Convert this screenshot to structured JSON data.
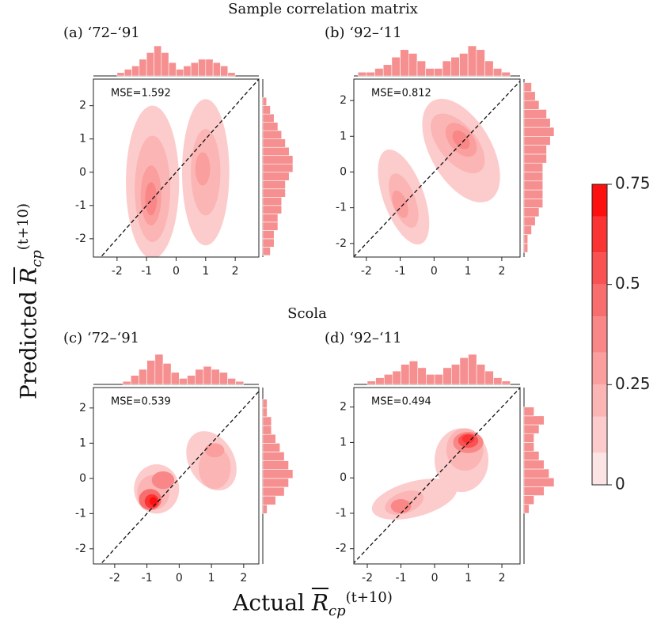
{
  "figure": {
    "section_titles": [
      "Sample correlation matrix",
      "Scola"
    ],
    "xlabel": {
      "text": "Actual",
      "symbol": "R",
      "subscript": "cp",
      "superscript": "(t+10)"
    },
    "ylabel": {
      "text": "Predicted",
      "symbol": "R",
      "subscript": "cp",
      "superscript": "(t+10)"
    }
  },
  "chart_data": [
    {
      "type": "kde",
      "title": "(a) ‘72–‘91",
      "annotation": "MSE=1.592",
      "xlim": [
        -2.8,
        2.8
      ],
      "ylim": [
        -2.55,
        2.8
      ],
      "xticks": [
        -2,
        -1,
        0,
        1,
        2
      ],
      "yticks": [
        -2,
        -1,
        0,
        1,
        2
      ],
      "contours": [
        {
          "x": -0.8,
          "y": -0.3,
          "rx": 0.9,
          "ry": 2.3,
          "angle": 0,
          "level": 0.08
        },
        {
          "x": 1.0,
          "y": 0.0,
          "rx": 0.8,
          "ry": 2.2,
          "angle": 0,
          "level": 0.08
        },
        {
          "x": -0.8,
          "y": -0.5,
          "rx": 0.6,
          "ry": 1.6,
          "angle": 0,
          "level": 0.17
        },
        {
          "x": 1.0,
          "y": 0.0,
          "rx": 0.5,
          "ry": 1.3,
          "angle": 0,
          "level": 0.17
        },
        {
          "x": -0.85,
          "y": -0.7,
          "rx": 0.35,
          "ry": 0.9,
          "angle": 0,
          "level": 0.25
        },
        {
          "x": 0.9,
          "y": 0.1,
          "rx": 0.25,
          "ry": 0.5,
          "angle": 0,
          "level": 0.25
        },
        {
          "x": -0.85,
          "y": -0.8,
          "rx": 0.2,
          "ry": 0.5,
          "angle": 0,
          "level": 0.33
        }
      ],
      "hist_x": {
        "bins": [
          -2.5,
          -2.25,
          -2,
          -1.75,
          -1.5,
          -1.25,
          -1,
          -0.75,
          -0.5,
          -0.25,
          0,
          0.25,
          0.5,
          0.75,
          1,
          1.25,
          1.5,
          1.75,
          2,
          2.25,
          2.5
        ],
        "counts": [
          0,
          0,
          1,
          2,
          3,
          5,
          7,
          9,
          7,
          4,
          2,
          3,
          4,
          5,
          5,
          4,
          3,
          1,
          0,
          0
        ]
      },
      "hist_y": {
        "bins": [
          -2.5,
          -2.25,
          -2,
          -1.75,
          -1.5,
          -1.25,
          -1,
          -0.75,
          -0.5,
          -0.25,
          0,
          0.25,
          0.5,
          0.75,
          1,
          1.25,
          1.5,
          1.75,
          2,
          2.25,
          2.5
        ],
        "counts": [
          2,
          3,
          3,
          4,
          4,
          5,
          5,
          6,
          6,
          7,
          8,
          8,
          7,
          6,
          5,
          4,
          3,
          2,
          1,
          0
        ]
      }
    },
    {
      "type": "kde",
      "title": "(b) ‘92–‘11",
      "annotation": "MSE=0.812",
      "xlim": [
        -2.37,
        2.54
      ],
      "ylim": [
        -2.38,
        2.6
      ],
      "xticks": [
        -2,
        -1,
        0,
        1,
        2
      ],
      "yticks": [
        -2,
        -1,
        0,
        1,
        2
      ],
      "contours": [
        {
          "x": -0.9,
          "y": -0.7,
          "rx": 0.6,
          "ry": 1.4,
          "angle": 20,
          "level": 0.08
        },
        {
          "x": 0.8,
          "y": 0.6,
          "rx": 0.9,
          "ry": 1.6,
          "angle": 30,
          "level": 0.08
        },
        {
          "x": -0.9,
          "y": -0.8,
          "rx": 0.35,
          "ry": 0.8,
          "angle": 20,
          "level": 0.17
        },
        {
          "x": 0.7,
          "y": 0.8,
          "rx": 0.55,
          "ry": 1.0,
          "angle": 40,
          "level": 0.17
        },
        {
          "x": 0.8,
          "y": 0.9,
          "rx": 0.35,
          "ry": 0.55,
          "angle": 40,
          "level": 0.25
        },
        {
          "x": -1.0,
          "y": -0.9,
          "rx": 0.2,
          "ry": 0.4,
          "angle": 20,
          "level": 0.25
        },
        {
          "x": 0.8,
          "y": 0.9,
          "rx": 0.2,
          "ry": 0.3,
          "angle": 40,
          "level": 0.33
        }
      ],
      "hist_x": {
        "bins": [
          -2.5,
          -2.25,
          -2,
          -1.75,
          -1.5,
          -1.25,
          -1,
          -0.75,
          -0.5,
          -0.25,
          0,
          0.25,
          0.5,
          0.75,
          1,
          1.25,
          1.5,
          1.75,
          2,
          2.25,
          2.5
        ],
        "counts": [
          0,
          1,
          1,
          2,
          3,
          5,
          7,
          6,
          4,
          2,
          2,
          4,
          5,
          6,
          8,
          7,
          4,
          2,
          1,
          0
        ]
      },
      "hist_y": {
        "bins": [
          -2.5,
          -2.25,
          -2,
          -1.75,
          -1.5,
          -1.25,
          -1,
          -0.75,
          -0.5,
          -0.25,
          0,
          0.25,
          0.5,
          0.75,
          1,
          1.25,
          1.5,
          1.75,
          2,
          2.25,
          2.5
        ],
        "counts": [
          0,
          1,
          1,
          2,
          3,
          4,
          5,
          5,
          5,
          5,
          5,
          6,
          6,
          7,
          8,
          7,
          6,
          4,
          3,
          2
        ]
      }
    },
    {
      "type": "kde",
      "title": "(c) ‘72–‘91",
      "annotation": "MSE=0.539",
      "xlim": [
        -2.66,
        2.47
      ],
      "ylim": [
        -2.43,
        2.58
      ],
      "xticks": [
        -2,
        -1,
        0,
        1,
        2
      ],
      "yticks": [
        -2,
        -1,
        0,
        1,
        2
      ],
      "contours": [
        {
          "x": -0.7,
          "y": -0.3,
          "rx": 0.7,
          "ry": 0.7,
          "angle": 0,
          "level": 0.08
        },
        {
          "x": 1.0,
          "y": 0.5,
          "rx": 0.7,
          "ry": 0.9,
          "angle": 30,
          "level": 0.08
        },
        {
          "x": 1.1,
          "y": 0.3,
          "rx": 0.5,
          "ry": 0.6,
          "angle": 0,
          "level": 0.17
        },
        {
          "x": -0.8,
          "y": -0.4,
          "rx": 0.5,
          "ry": 0.5,
          "angle": 0,
          "level": 0.17
        },
        {
          "x": 1.1,
          "y": 0.8,
          "rx": 0.3,
          "ry": 0.2,
          "angle": 0,
          "level": 0.25
        },
        {
          "x": -0.5,
          "y": -0.05,
          "rx": 0.35,
          "ry": 0.25,
          "angle": 0,
          "level": 0.33
        },
        {
          "x": -0.9,
          "y": -0.6,
          "rx": 0.35,
          "ry": 0.3,
          "angle": 0,
          "level": 0.42
        },
        {
          "x": -0.85,
          "y": -0.65,
          "rx": 0.22,
          "ry": 0.2,
          "angle": 0,
          "level": 0.58
        },
        {
          "x": -0.8,
          "y": -0.65,
          "rx": 0.12,
          "ry": 0.12,
          "angle": 0,
          "level": 0.67
        }
      ],
      "hist_x": {
        "bins": [
          -2.5,
          -2.25,
          -2,
          -1.75,
          -1.5,
          -1.25,
          -1,
          -0.75,
          -0.5,
          -0.25,
          0,
          0.25,
          0.5,
          0.75,
          1,
          1.25,
          1.5,
          1.75,
          2,
          2.25,
          2.5
        ],
        "counts": [
          0,
          0,
          0,
          1,
          3,
          5,
          8,
          10,
          7,
          4,
          2,
          3,
          5,
          6,
          5,
          4,
          2,
          1,
          0,
          0
        ]
      },
      "hist_y": {
        "bins": [
          -2.5,
          -2.25,
          -2,
          -1.75,
          -1.5,
          -1.25,
          -1,
          -0.75,
          -0.5,
          -0.25,
          0,
          0.25,
          0.5,
          0.75,
          1,
          1.25,
          1.5,
          1.75,
          2,
          2.25,
          2.5
        ],
        "counts": [
          0,
          0,
          0,
          0,
          0,
          0,
          1,
          3,
          5,
          6,
          7,
          6,
          5,
          4,
          3,
          2,
          2,
          1,
          1,
          0
        ]
      }
    },
    {
      "type": "kde",
      "title": "(d) ‘92–‘11",
      "annotation": "MSE=0.494",
      "xlim": [
        -2.4,
        2.54
      ],
      "ylim": [
        -2.43,
        2.55
      ],
      "xticks": [
        -2,
        -1,
        0,
        1,
        2
      ],
      "yticks": [
        -2,
        -1,
        0,
        1,
        2
      ],
      "contours": [
        {
          "x": -0.6,
          "y": -0.6,
          "rx": 1.3,
          "ry": 0.5,
          "angle": 15,
          "level": 0.08
        },
        {
          "x": 0.8,
          "y": 0.5,
          "rx": 0.8,
          "ry": 0.9,
          "angle": 0,
          "level": 0.08
        },
        {
          "x": 0.9,
          "y": 0.8,
          "rx": 0.55,
          "ry": 0.6,
          "angle": 0,
          "level": 0.17
        },
        {
          "x": -0.9,
          "y": -0.7,
          "rx": 0.6,
          "ry": 0.3,
          "angle": 20,
          "level": 0.17
        },
        {
          "x": -1.0,
          "y": -0.8,
          "rx": 0.3,
          "ry": 0.2,
          "angle": 0,
          "level": 0.33
        },
        {
          "x": 1.0,
          "y": 1.0,
          "rx": 0.45,
          "ry": 0.3,
          "angle": 0,
          "level": 0.33
        },
        {
          "x": 1.0,
          "y": 1.05,
          "rx": 0.3,
          "ry": 0.2,
          "angle": 0,
          "level": 0.5
        },
        {
          "x": 1.0,
          "y": 1.1,
          "rx": 0.18,
          "ry": 0.12,
          "angle": 0,
          "level": 0.58
        }
      ],
      "hist_x": {
        "bins": [
          -2.5,
          -2.25,
          -2,
          -1.75,
          -1.5,
          -1.25,
          -1,
          -0.75,
          -0.5,
          -0.25,
          0,
          0.25,
          0.5,
          0.75,
          1,
          1.25,
          1.5,
          1.75,
          2,
          2.25,
          2.5
        ],
        "counts": [
          0,
          0,
          1,
          2,
          3,
          4,
          6,
          7,
          5,
          3,
          3,
          5,
          6,
          8,
          9,
          6,
          4,
          2,
          1,
          0
        ]
      },
      "hist_y": {
        "bins": [
          -2.5,
          -2.25,
          -2,
          -1.75,
          -1.5,
          -1.25,
          -1,
          -0.75,
          -0.5,
          -0.25,
          0,
          0.25,
          0.5,
          0.75,
          1,
          1.25,
          1.5,
          1.75,
          2,
          2.25,
          2.5
        ],
        "counts": [
          0,
          0,
          0,
          0,
          0,
          0,
          1,
          2,
          4,
          6,
          5,
          4,
          3,
          2,
          2,
          3,
          4,
          2,
          0,
          0
        ]
      }
    },
    {
      "type": "colorbar",
      "levels": [
        0,
        0.08,
        0.17,
        0.25,
        0.33,
        0.42,
        0.5,
        0.58,
        0.67,
        0.75
      ],
      "colors": [
        "#fde4e4",
        "#fccccc",
        "#fbb5b5",
        "#fa9e9e",
        "#f98787",
        "#f86e6e",
        "#f85252",
        "#fa3333",
        "#fc1010"
      ],
      "ylim": [
        0,
        0.75
      ],
      "yticks": [
        0,
        0.25,
        0.5,
        0.75
      ],
      "hist_color": "#f47b7b"
    }
  ]
}
